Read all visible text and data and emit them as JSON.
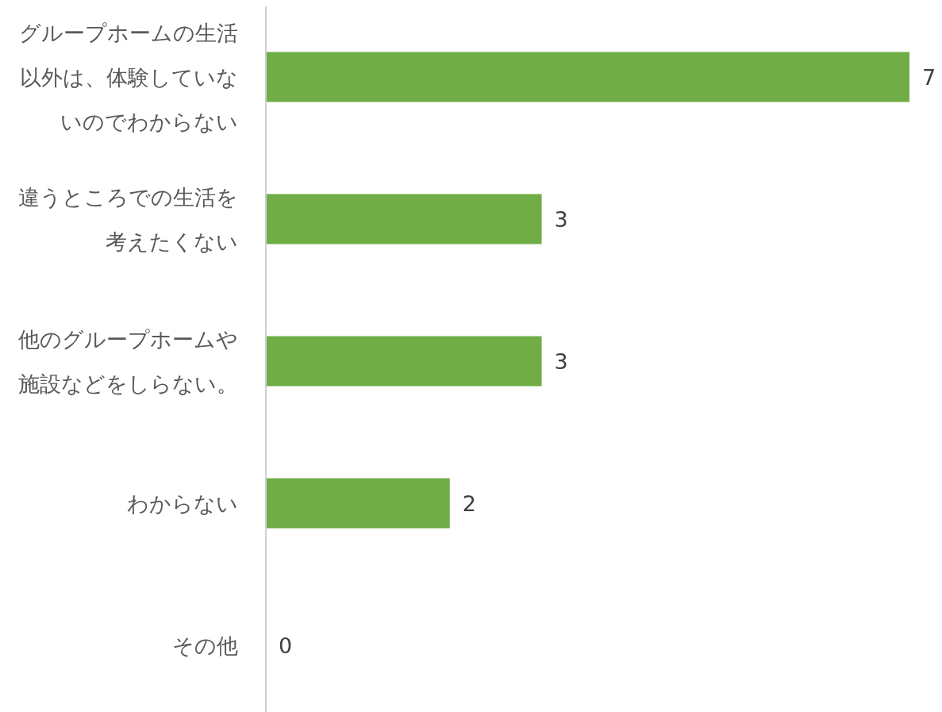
{
  "chart_data": {
    "type": "bar",
    "orientation": "horizontal",
    "categories": [
      "グループホームの生活以外は、体験していないのでわからない",
      "違うところでの生活を考えたくない",
      "他のグループホームや施設などをしらない。",
      "わからない",
      "その他"
    ],
    "values": [
      7,
      3,
      3,
      2,
      0
    ],
    "color": "#70ad47",
    "data_labels": true
  }
}
